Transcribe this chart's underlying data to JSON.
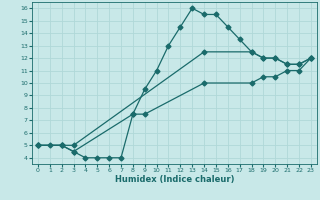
{
  "xlabel": "Humidex (Indice chaleur)",
  "bg_color": "#c8e8e8",
  "line_color": "#1a6b6b",
  "grid_color": "#b0d8d8",
  "xlim": [
    -0.5,
    23.5
  ],
  "ylim": [
    3.5,
    16.5
  ],
  "xticks": [
    0,
    1,
    2,
    3,
    4,
    5,
    6,
    7,
    8,
    9,
    10,
    11,
    12,
    13,
    14,
    15,
    16,
    17,
    18,
    19,
    20,
    21,
    22,
    23
  ],
  "yticks": [
    4,
    5,
    6,
    7,
    8,
    9,
    10,
    11,
    12,
    13,
    14,
    15,
    16
  ],
  "line1_x": [
    0,
    1,
    2,
    3,
    4,
    5,
    6,
    7,
    8,
    9,
    10,
    11,
    12,
    13,
    14,
    15,
    16,
    17,
    18,
    19,
    20,
    21,
    22,
    23
  ],
  "line1_y": [
    5.0,
    5.0,
    5.0,
    4.5,
    4.0,
    4.0,
    4.0,
    4.0,
    7.5,
    9.5,
    11.0,
    13.0,
    14.5,
    16.0,
    15.5,
    15.5,
    14.5,
    13.5,
    12.5,
    12.0,
    12.0,
    11.5,
    11.5,
    12.0
  ],
  "line2_x": [
    0,
    2,
    3,
    14,
    18,
    19,
    20,
    21,
    22,
    23
  ],
  "line2_y": [
    5.0,
    5.0,
    5.0,
    12.5,
    12.5,
    12.0,
    12.0,
    11.5,
    11.5,
    12.0
  ],
  "line3_x": [
    0,
    2,
    3,
    8,
    9,
    14,
    18,
    19,
    20,
    21,
    22,
    23
  ],
  "line3_y": [
    5.0,
    5.0,
    4.5,
    7.5,
    7.5,
    10.0,
    10.0,
    10.5,
    10.5,
    11.0,
    11.0,
    12.0
  ]
}
